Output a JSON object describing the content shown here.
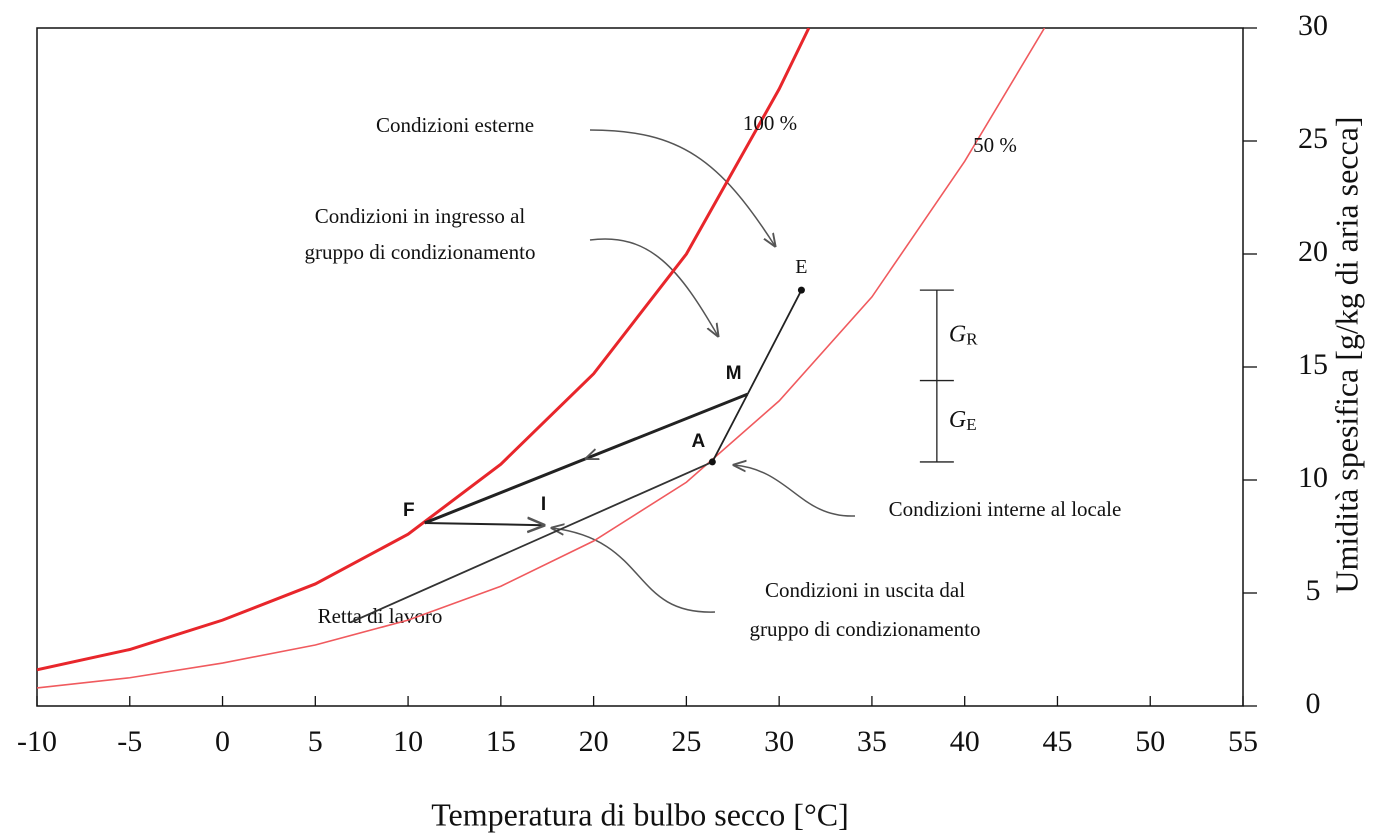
{
  "chart_data": {
    "type": "line",
    "xlabel": "Temperatura di bulbo secco [°C]",
    "ylabel": "Umidità spesifica [g/kg di aria secca]",
    "xlim": [
      -10,
      55
    ],
    "ylim": [
      0,
      30
    ],
    "xticks": [
      -10,
      -5,
      0,
      5,
      10,
      15,
      20,
      25,
      30,
      35,
      40,
      45,
      50,
      55
    ],
    "yticks": [
      0,
      5,
      10,
      15,
      20,
      25,
      30
    ],
    "series": [
      {
        "name": "100 %",
        "color": "#e8262b",
        "x": [
          -10,
          -5,
          0,
          5,
          10,
          15,
          20,
          25,
          30,
          31.6
        ],
        "values": [
          1.6,
          2.5,
          3.8,
          5.4,
          7.6,
          10.7,
          14.7,
          20.0,
          27.3,
          30
        ]
      },
      {
        "name": "50 %",
        "color": "#f05a5e",
        "x": [
          -10,
          -5,
          0,
          5,
          10,
          15,
          20,
          25,
          30,
          35,
          40,
          44.3
        ],
        "values": [
          0.8,
          1.25,
          1.9,
          2.7,
          3.8,
          5.3,
          7.3,
          9.9,
          13.5,
          18.1,
          24.1,
          30
        ]
      }
    ],
    "points": [
      {
        "label": "E",
        "x": 31.2,
        "y": 18.4
      },
      {
        "label": "M",
        "x": 28.3,
        "y": 13.8
      },
      {
        "label": "A",
        "x": 26.4,
        "y": 10.8
      },
      {
        "label": "F",
        "x": 10.9,
        "y": 8.1
      },
      {
        "label": "I",
        "x": 17.3,
        "y": 8.0
      }
    ],
    "dimension": {
      "x": 38.5,
      "top": 18.4,
      "mid": 14.4,
      "bottom": 10.8,
      "labels": [
        {
          "symbol": "G",
          "subscript": "R"
        },
        {
          "symbol": "G",
          "subscript": "E"
        }
      ]
    },
    "working_line": {
      "label": "Retta di lavoro",
      "x": [
        6.9,
        26.4
      ],
      "values": [
        3.7,
        10.8
      ]
    },
    "annotations": [
      {
        "lines": [
          "Condizioni esterne"
        ]
      },
      {
        "lines": [
          "Condizioni in ingresso al",
          "gruppo di condizionamento"
        ]
      },
      {
        "lines": [
          "Condizioni interne al locale"
        ]
      },
      {
        "lines": [
          "Condizioni in uscita dal",
          "gruppo di condizionamento"
        ]
      }
    ]
  }
}
